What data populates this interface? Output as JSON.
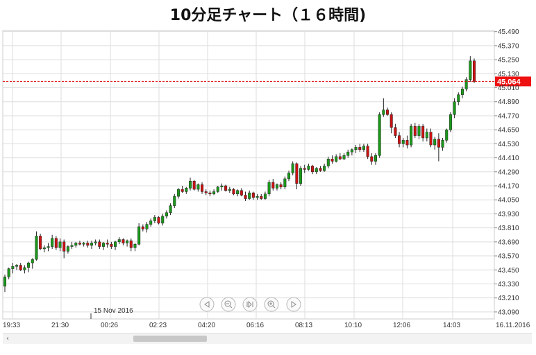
{
  "title": "10分足チャート（１６時間)",
  "current_price": {
    "label": "45.064",
    "value": 45.064,
    "color": "#dd0000"
  },
  "x_axis": {
    "labels": [
      "19:33",
      "21:30",
      "00:26",
      "02:23",
      "04:20",
      "06:16",
      "08:13",
      "10:10",
      "12:06",
      "14:03",
      "16.11.2016"
    ],
    "date_marker": "15 Nov 2016"
  },
  "y_axis": {
    "labels": [
      "45.490",
      "45.370",
      "45.250",
      "45.130",
      "45.010",
      "44.890",
      "44.770",
      "44.650",
      "44.530",
      "44.410",
      "44.290",
      "44.170",
      "44.050",
      "43.930",
      "43.810",
      "43.690",
      "43.570",
      "43.450",
      "43.330",
      "43.210",
      "43.090"
    ]
  },
  "colors": {
    "up": "#1a9a1a",
    "down": "#cc1111",
    "grid": "#dddddd",
    "wick": "#222222"
  },
  "nav_icons": [
    "scroll-left-icon",
    "zoom-out-icon",
    "reset-zoom-icon",
    "zoom-in-icon",
    "scroll-right-icon"
  ],
  "chart_data": {
    "type": "candlestick",
    "ylim": [
      43.03,
      45.5
    ],
    "grid": true,
    "candles": [
      [
        43.31,
        43.41,
        43.26,
        43.39
      ],
      [
        43.39,
        43.47,
        43.37,
        43.46
      ],
      [
        43.46,
        43.51,
        43.42,
        43.48
      ],
      [
        43.48,
        43.5,
        43.45,
        43.49
      ],
      [
        43.49,
        43.51,
        43.44,
        43.45
      ],
      [
        43.45,
        43.49,
        43.42,
        43.47
      ],
      [
        43.47,
        43.52,
        43.43,
        43.51
      ],
      [
        43.51,
        43.55,
        43.46,
        43.54
      ],
      [
        43.54,
        43.78,
        43.53,
        43.74
      ],
      [
        43.74,
        43.76,
        43.62,
        43.63
      ],
      [
        43.63,
        43.66,
        43.6,
        43.64
      ],
      [
        43.64,
        43.68,
        43.61,
        43.65
      ],
      [
        43.65,
        43.75,
        43.63,
        43.72
      ],
      [
        43.72,
        43.74,
        43.62,
        43.64
      ],
      [
        43.64,
        43.72,
        43.61,
        43.69
      ],
      [
        43.69,
        43.71,
        43.55,
        43.61
      ],
      [
        43.61,
        43.66,
        43.59,
        43.65
      ],
      [
        43.65,
        43.69,
        43.63,
        43.66
      ],
      [
        43.66,
        43.69,
        43.64,
        43.68
      ],
      [
        43.68,
        43.7,
        43.66,
        43.67
      ],
      [
        43.67,
        43.69,
        43.65,
        43.68
      ],
      [
        43.68,
        43.7,
        43.64,
        43.66
      ],
      [
        43.66,
        43.7,
        43.63,
        43.68
      ],
      [
        43.68,
        43.71,
        43.66,
        43.69
      ],
      [
        43.69,
        43.71,
        43.63,
        43.65
      ],
      [
        43.65,
        43.69,
        43.62,
        43.68
      ],
      [
        43.68,
        43.71,
        43.64,
        43.67
      ],
      [
        43.67,
        43.69,
        43.63,
        43.65
      ],
      [
        43.65,
        43.7,
        43.62,
        43.69
      ],
      [
        43.69,
        43.73,
        43.67,
        43.71
      ],
      [
        43.71,
        43.72,
        43.66,
        43.68
      ],
      [
        43.68,
        43.71,
        43.65,
        43.7
      ],
      [
        43.7,
        43.72,
        43.61,
        43.64
      ],
      [
        43.64,
        43.68,
        43.61,
        43.67
      ],
      [
        43.67,
        43.85,
        43.66,
        43.82
      ],
      [
        43.82,
        43.84,
        43.78,
        43.8
      ],
      [
        43.8,
        43.86,
        43.77,
        43.84
      ],
      [
        43.84,
        43.89,
        43.82,
        43.87
      ],
      [
        43.87,
        43.92,
        43.85,
        43.9
      ],
      [
        43.9,
        43.91,
        43.84,
        43.85
      ],
      [
        43.85,
        43.93,
        43.83,
        43.91
      ],
      [
        43.91,
        43.96,
        43.89,
        43.94
      ],
      [
        43.94,
        44.02,
        43.92,
        44.0
      ],
      [
        44.0,
        44.1,
        43.98,
        44.08
      ],
      [
        44.08,
        44.15,
        44.06,
        44.14
      ],
      [
        44.14,
        44.17,
        44.11,
        44.12
      ],
      [
        44.12,
        44.16,
        44.1,
        44.15
      ],
      [
        44.15,
        44.24,
        44.13,
        44.21
      ],
      [
        44.21,
        44.22,
        44.13,
        44.14
      ],
      [
        44.14,
        44.19,
        44.12,
        44.18
      ],
      [
        44.18,
        44.2,
        44.1,
        44.12
      ],
      [
        44.12,
        44.14,
        44.09,
        44.11
      ],
      [
        44.11,
        44.13,
        44.08,
        44.1
      ],
      [
        44.1,
        44.14,
        44.09,
        44.12
      ],
      [
        44.12,
        44.17,
        44.11,
        44.16
      ],
      [
        44.16,
        44.19,
        44.13,
        44.17
      ],
      [
        44.17,
        44.18,
        44.12,
        44.13
      ],
      [
        44.13,
        44.16,
        44.11,
        44.14
      ],
      [
        44.14,
        44.15,
        44.09,
        44.1
      ],
      [
        44.1,
        44.14,
        44.08,
        44.13
      ],
      [
        44.13,
        44.15,
        44.08,
        44.09
      ],
      [
        44.09,
        44.12,
        44.04,
        44.06
      ],
      [
        44.06,
        44.13,
        44.05,
        44.11
      ],
      [
        44.11,
        44.12,
        44.05,
        44.07
      ],
      [
        44.07,
        44.1,
        44.05,
        44.08
      ],
      [
        44.08,
        44.1,
        44.05,
        44.06
      ],
      [
        44.06,
        44.12,
        44.05,
        44.1
      ],
      [
        44.1,
        44.22,
        44.08,
        44.2
      ],
      [
        44.2,
        44.23,
        44.13,
        44.15
      ],
      [
        44.15,
        44.19,
        44.13,
        44.18
      ],
      [
        44.18,
        44.2,
        44.14,
        44.16
      ],
      [
        44.16,
        44.25,
        44.14,
        44.23
      ],
      [
        44.23,
        44.3,
        44.21,
        44.28
      ],
      [
        44.28,
        44.38,
        44.26,
        44.36
      ],
      [
        44.36,
        44.37,
        44.14,
        44.19
      ],
      [
        44.19,
        44.34,
        44.17,
        44.32
      ],
      [
        44.32,
        44.35,
        44.28,
        44.31
      ],
      [
        44.31,
        44.36,
        44.3,
        44.34
      ],
      [
        44.34,
        44.35,
        44.27,
        44.29
      ],
      [
        44.29,
        44.33,
        44.27,
        44.32
      ],
      [
        44.32,
        44.34,
        44.29,
        44.3
      ],
      [
        44.3,
        44.36,
        44.29,
        44.34
      ],
      [
        44.34,
        44.42,
        44.32,
        44.4
      ],
      [
        44.4,
        44.43,
        44.36,
        44.38
      ],
      [
        44.38,
        44.44,
        44.37,
        44.42
      ],
      [
        44.42,
        44.45,
        44.39,
        44.4
      ],
      [
        44.4,
        44.45,
        44.39,
        44.43
      ],
      [
        44.43,
        44.48,
        44.41,
        44.46
      ],
      [
        44.46,
        44.49,
        44.43,
        44.48
      ],
      [
        44.48,
        44.52,
        44.45,
        44.5
      ],
      [
        44.5,
        44.53,
        44.46,
        44.48
      ],
      [
        44.48,
        44.53,
        44.46,
        44.51
      ],
      [
        44.51,
        44.53,
        44.4,
        44.42
      ],
      [
        44.42,
        44.45,
        44.35,
        44.38
      ],
      [
        44.38,
        44.45,
        44.35,
        44.43
      ],
      [
        44.43,
        44.8,
        44.41,
        44.78
      ],
      [
        44.78,
        44.92,
        44.76,
        44.82
      ],
      [
        44.82,
        44.84,
        44.77,
        44.78
      ],
      [
        44.78,
        44.8,
        44.62,
        44.67
      ],
      [
        44.67,
        44.7,
        44.58,
        44.6
      ],
      [
        44.6,
        44.63,
        44.5,
        44.53
      ],
      [
        44.53,
        44.58,
        44.5,
        44.56
      ],
      [
        44.56,
        44.6,
        44.49,
        44.52
      ],
      [
        44.52,
        44.7,
        44.5,
        44.68
      ],
      [
        44.68,
        44.71,
        44.58,
        44.6
      ],
      [
        44.6,
        44.7,
        44.57,
        44.68
      ],
      [
        44.68,
        44.7,
        44.55,
        44.58
      ],
      [
        44.58,
        44.66,
        44.55,
        44.63
      ],
      [
        44.63,
        44.66,
        44.5,
        44.52
      ],
      [
        44.52,
        44.59,
        44.48,
        44.57
      ],
      [
        44.57,
        44.62,
        44.38,
        44.5
      ],
      [
        44.5,
        44.58,
        44.47,
        44.56
      ],
      [
        44.56,
        44.66,
        44.54,
        44.65
      ],
      [
        44.65,
        44.8,
        44.63,
        44.78
      ],
      [
        44.78,
        44.92,
        44.75,
        44.89
      ],
      [
        44.89,
        44.97,
        44.86,
        44.95
      ],
      [
        44.95,
        45.02,
        44.92,
        45.0
      ],
      [
        45.0,
        45.1,
        44.98,
        45.08
      ],
      [
        45.08,
        45.28,
        45.06,
        45.24
      ],
      [
        45.24,
        45.26,
        45.05,
        45.064
      ]
    ]
  }
}
